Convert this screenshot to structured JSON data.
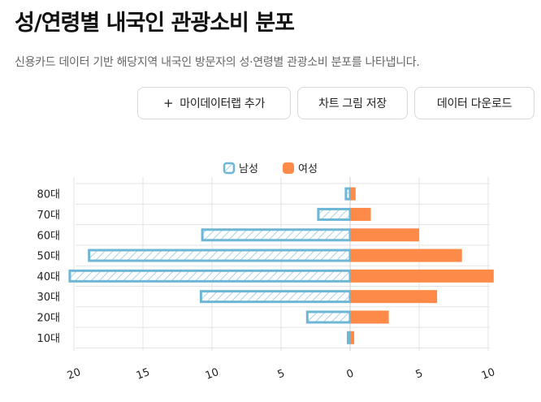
{
  "header": {
    "title": "성/연령별 내국인 관광소비 분포",
    "description": "신용카드 데이터 기반 해당지역 내국인 방문자의 성·연령별 관광소비 분포를 나타냅니다."
  },
  "toolbar": {
    "add_label": "마이데이터랩 추가",
    "save_label": "차트 그림 저장",
    "download_label": "데이터 다운로드"
  },
  "colors": {
    "male": "#6db6d6",
    "female": "#fd8a48",
    "grid": "#e3e3e3"
  },
  "chart_data": {
    "type": "bar",
    "orientation": "horizontal-butterfly",
    "categories": [
      "80대",
      "70대",
      "60대",
      "50대",
      "40대",
      "30대",
      "20대",
      "10대"
    ],
    "series": [
      {
        "name": "남성",
        "values": [
          0.3,
          2.3,
          10.7,
          18.9,
          20.3,
          10.8,
          3.1,
          0.15
        ]
      },
      {
        "name": "여성",
        "values": [
          0.4,
          1.5,
          5.0,
          8.1,
          10.4,
          6.3,
          2.8,
          0.3
        ]
      }
    ],
    "x_ticks": [
      "20",
      "15",
      "10",
      "5",
      "0",
      "5",
      "10"
    ],
    "legend_position": "top",
    "grid": true
  }
}
